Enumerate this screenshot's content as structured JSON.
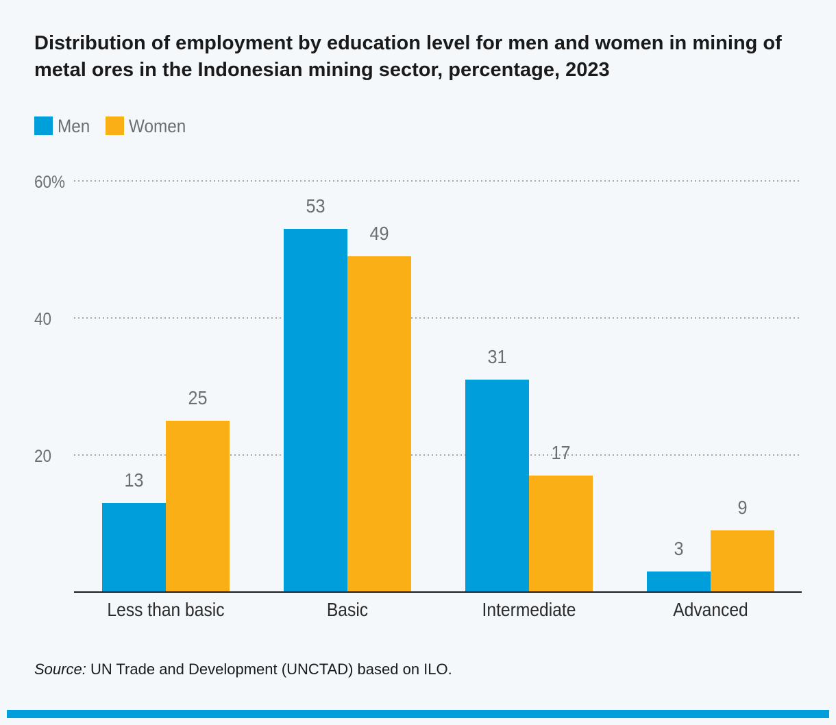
{
  "colors": {
    "men": "#009edb",
    "women": "#fbaf17",
    "grid": "#8a8a8a",
    "axis": "#1a1a1a",
    "label": "#6d6e71",
    "bottom_bar": "#009edb"
  },
  "source": {
    "prefix": "Source:",
    "text": " UN Trade and Development (UNCTAD) based on ILO."
  },
  "chart_data": {
    "type": "bar",
    "title": "Distribution of employment by education level for men and women in mining of metal ores in the Indonesian mining sector, percentage, 2023",
    "categories": [
      "Less than basic",
      "Basic",
      "Intermediate",
      "Advanced"
    ],
    "series": [
      {
        "name": "Men",
        "values": [
          13,
          53,
          31,
          3
        ]
      },
      {
        "name": "Women",
        "values": [
          25,
          49,
          17,
          9
        ]
      }
    ],
    "ylim": [
      0,
      60
    ],
    "yticks": [
      {
        "value": 20,
        "label": "20"
      },
      {
        "value": 40,
        "label": "40"
      },
      {
        "value": 60,
        "label": "60%"
      }
    ],
    "grid": true,
    "legend_position": "top-left",
    "xlabel": "",
    "ylabel": ""
  }
}
